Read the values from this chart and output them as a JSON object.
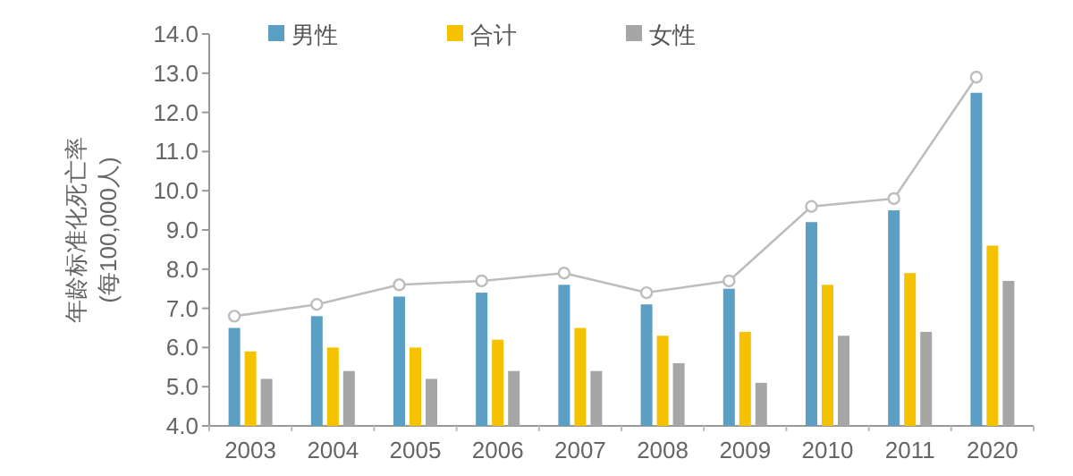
{
  "chart_data": {
    "type": "bar",
    "ylabel": "年龄标准化死亡率\n(每100,000人)",
    "categories": [
      "2003",
      "2004",
      "2005",
      "2006",
      "2007",
      "2008",
      "2009",
      "2010",
      "2011",
      "2020"
    ],
    "series": [
      {
        "name": "男性",
        "color": "#5b9fc4",
        "values": [
          6.5,
          6.8,
          7.3,
          7.4,
          7.6,
          7.1,
          7.5,
          9.2,
          9.5,
          12.5
        ]
      },
      {
        "name": "合计",
        "color": "#f5c200",
        "values": [
          5.9,
          6.0,
          6.0,
          6.2,
          6.5,
          6.3,
          6.4,
          7.6,
          7.9,
          8.6
        ]
      },
      {
        "name": "女性",
        "color": "#a6a6a6",
        "values": [
          5.2,
          5.4,
          5.2,
          5.4,
          5.4,
          5.6,
          5.1,
          6.3,
          6.4,
          7.7
        ]
      },
      {
        "type": "line",
        "color": "#bdbdbd",
        "marker": "circle",
        "values": [
          6.8,
          7.1,
          7.6,
          7.7,
          7.9,
          7.4,
          7.7,
          9.6,
          9.8,
          12.9
        ]
      }
    ],
    "ylim": [
      4,
      14
    ],
    "yticks": [
      {
        "value": 4,
        "label": "4.0"
      },
      {
        "value": 5,
        "label": "5.0"
      },
      {
        "value": 6,
        "label": "6.0"
      },
      {
        "value": 7,
        "label": "7.0"
      },
      {
        "value": 8,
        "label": "8.0"
      },
      {
        "value": 9,
        "label": "9.0"
      },
      {
        "value": 10,
        "label": "10.0"
      },
      {
        "value": 11,
        "label": "11.0"
      },
      {
        "value": 12,
        "label": "12.0"
      },
      {
        "value": 13,
        "label": "13.0"
      },
      {
        "value": 14,
        "label": "14.0"
      }
    ],
    "legend": "top",
    "grid": false
  }
}
